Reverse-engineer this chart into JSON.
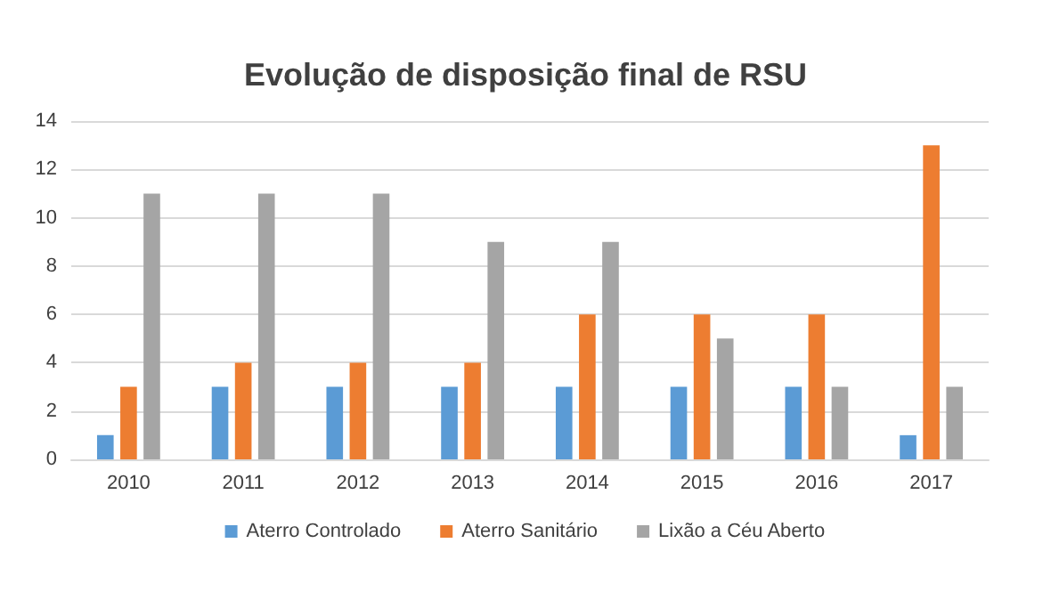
{
  "chart_data": {
    "type": "bar",
    "title": "Evolução de disposição final de RSU",
    "categories": [
      "2010",
      "2011",
      "2012",
      "2013",
      "2014",
      "2015",
      "2016",
      "2017"
    ],
    "series": [
      {
        "name": "Aterro Controlado",
        "color": "#5b9bd5",
        "values": [
          1,
          3,
          3,
          3,
          3,
          3,
          3,
          1
        ]
      },
      {
        "name": "Aterro Sanitário",
        "color": "#ed7d31",
        "values": [
          3,
          4,
          4,
          4,
          6,
          6,
          6,
          13
        ]
      },
      {
        "name": "Lixão a Céu Aberto",
        "color": "#a5a5a5",
        "values": [
          11,
          11,
          11,
          9,
          9,
          5,
          3,
          3
        ]
      }
    ],
    "ylim": [
      0,
      14
    ],
    "yticks": [
      0,
      2,
      4,
      6,
      8,
      10,
      12,
      14
    ],
    "grid": "y",
    "legend": "bottom"
  }
}
